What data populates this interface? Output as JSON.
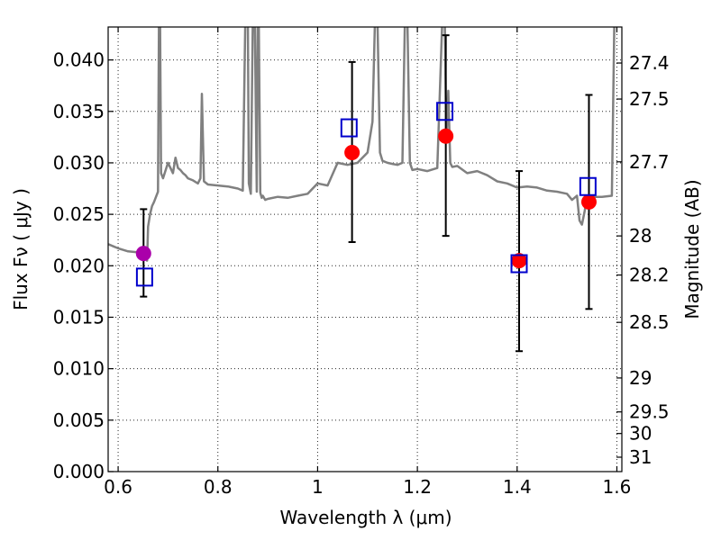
{
  "chart_data": {
    "type": "scatter",
    "title": "",
    "xlabel": "Wavelength  λ (μm)",
    "ylabel": "Flux  Fν  ( μJy )",
    "y2label": "Magnitude (AB)",
    "xlim": [
      0.58,
      1.61
    ],
    "ylim": [
      0.0,
      0.0432
    ],
    "grid": true,
    "x_ticks": [
      0.6,
      0.8,
      1.0,
      1.2,
      1.4,
      1.6
    ],
    "x_tick_labels": [
      "0.6",
      "0.8",
      "1",
      "1.2",
      "1.4",
      "1.6"
    ],
    "y_ticks": [
      0.0,
      0.005,
      0.01,
      0.015,
      0.02,
      0.025,
      0.03,
      0.035,
      0.04
    ],
    "y_tick_labels": [
      "0.000",
      "0.005",
      "0.010",
      "0.015",
      "0.020",
      "0.025",
      "0.030",
      "0.035",
      "0.040"
    ],
    "y2_ticks": [
      {
        "label": "27.4",
        "flux": 0.0397
      },
      {
        "label": "27.5",
        "flux": 0.0362
      },
      {
        "label": "27.7",
        "flux": 0.0301
      },
      {
        "label": "28",
        "flux": 0.0229
      },
      {
        "label": "28.2",
        "flux": 0.0191
      },
      {
        "label": "28.5",
        "flux": 0.0145
      },
      {
        "label": "29",
        "flux": 0.0091
      },
      {
        "label": "29.5",
        "flux": 0.0058
      },
      {
        "label": "30",
        "flux": 0.0037
      },
      {
        "label": "31",
        "flux": 0.0014
      }
    ],
    "series": [
      {
        "style": "line",
        "color": "#808080",
        "x": [
          0.58,
          0.6,
          0.62,
          0.64,
          0.648,
          0.652,
          0.658,
          0.66,
          0.664,
          0.668,
          0.672,
          0.676,
          0.68,
          0.682,
          0.684,
          0.686,
          0.69,
          0.7,
          0.71,
          0.715,
          0.72,
          0.725,
          0.73,
          0.735,
          0.74,
          0.75,
          0.76,
          0.765,
          0.768,
          0.772,
          0.78,
          0.8,
          0.82,
          0.84,
          0.85,
          0.855,
          0.86,
          0.862,
          0.866,
          0.87,
          0.874,
          0.878,
          0.88,
          0.882,
          0.885,
          0.888,
          0.89,
          0.895,
          0.9,
          0.92,
          0.94,
          0.96,
          0.98,
          1.0,
          1.02,
          1.04,
          1.06,
          1.08,
          1.1,
          1.11,
          1.115,
          1.12,
          1.125,
          1.13,
          1.14,
          1.15,
          1.16,
          1.17,
          1.175,
          1.18,
          1.185,
          1.19,
          1.2,
          1.22,
          1.24,
          1.25,
          1.255,
          1.258,
          1.262,
          1.266,
          1.27,
          1.28,
          1.3,
          1.32,
          1.33,
          1.34,
          1.36,
          1.38,
          1.4,
          1.42,
          1.44,
          1.46,
          1.48,
          1.5,
          1.51,
          1.52,
          1.525,
          1.53,
          1.535,
          1.54,
          1.55,
          1.57,
          1.59,
          1.595,
          1.6
        ],
        "y": [
          0.0221,
          0.0217,
          0.0214,
          0.0213,
          0.0212,
          0.0215,
          0.0205,
          0.0238,
          0.025,
          0.0258,
          0.0262,
          0.0267,
          0.0272,
          0.044,
          0.044,
          0.029,
          0.0285,
          0.03,
          0.029,
          0.0305,
          0.0295,
          0.0293,
          0.029,
          0.0288,
          0.0285,
          0.0283,
          0.028,
          0.0285,
          0.0367,
          0.0282,
          0.0279,
          0.0278,
          0.0277,
          0.0275,
          0.0273,
          0.044,
          0.044,
          0.028,
          0.027,
          0.044,
          0.044,
          0.0272,
          0.044,
          0.044,
          0.0271,
          0.0266,
          0.0268,
          0.0264,
          0.0265,
          0.0267,
          0.0266,
          0.0268,
          0.027,
          0.028,
          0.0278,
          0.03,
          0.0298,
          0.03,
          0.031,
          0.034,
          0.044,
          0.044,
          0.031,
          0.0302,
          0.03,
          0.0299,
          0.0298,
          0.03,
          0.044,
          0.044,
          0.03,
          0.0293,
          0.0294,
          0.0292,
          0.0295,
          0.044,
          0.044,
          0.032,
          0.037,
          0.03,
          0.0296,
          0.0297,
          0.029,
          0.0292,
          0.029,
          0.0288,
          0.0282,
          0.028,
          0.0276,
          0.0277,
          0.0276,
          0.0273,
          0.0272,
          0.027,
          0.0264,
          0.0268,
          0.0244,
          0.024,
          0.0252,
          0.0266,
          0.0267,
          0.0267,
          0.0268,
          0.044,
          0.044
        ]
      },
      {
        "style": "errorbar",
        "color": "#000000",
        "points": [
          {
            "x": 0.651,
            "y": 0.0212,
            "lo": 0.017,
            "hi": 0.0255
          },
          {
            "x": 1.069,
            "y": 0.031,
            "lo": 0.0223,
            "hi": 0.0398
          },
          {
            "x": 1.257,
            "y": 0.0326,
            "lo": 0.0229,
            "hi": 0.0424
          },
          {
            "x": 1.404,
            "y": 0.0205,
            "lo": 0.0117,
            "hi": 0.0292
          },
          {
            "x": 1.544,
            "y": 0.0262,
            "lo": 0.0158,
            "hi": 0.0366
          }
        ]
      },
      {
        "style": "markers",
        "marker": "circle",
        "color": "#ff0000",
        "x": [
          1.069,
          1.257,
          1.404,
          1.544
        ],
        "y": [
          0.031,
          0.0326,
          0.0205,
          0.0262
        ]
      },
      {
        "style": "markers",
        "marker": "circle",
        "color": "#aa00aa",
        "x": [
          0.651
        ],
        "y": [
          0.0212
        ]
      },
      {
        "style": "markers",
        "marker": "open-square",
        "color": "#0000cc",
        "x": [
          0.653,
          1.063,
          1.255,
          1.404,
          1.542
        ],
        "y": [
          0.0189,
          0.0334,
          0.035,
          0.0202,
          0.0277
        ]
      }
    ]
  }
}
